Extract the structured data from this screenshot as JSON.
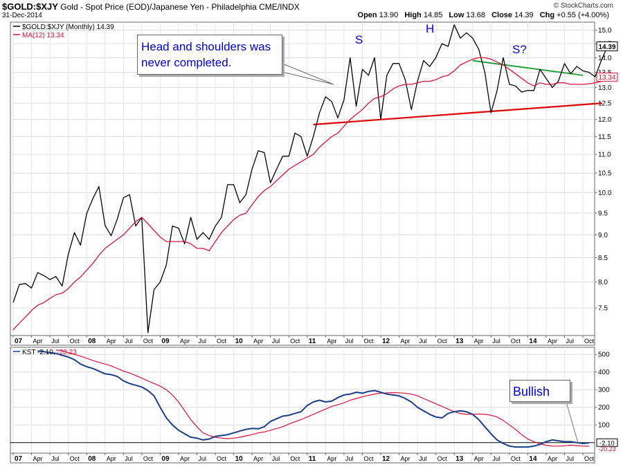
{
  "header": {
    "symbol": "$GOLD:$XJY",
    "description": "Gold - Spot Price (EOD)/Japanese Yen - Philadelphia  CME/INDX",
    "date": "31-Dec-2014",
    "credit": "© StockCharts.com",
    "open_label": "Open",
    "open": "13.90",
    "high_label": "High",
    "high": "14.85",
    "low_label": "Low",
    "low": "13.68",
    "close_label": "Close",
    "close": "14.39",
    "chg_label": "Chg",
    "chg": "+0.55 (+4.00%)"
  },
  "annotations": {
    "callout_line1": "Head and shoulders was",
    "callout_line2": "never completed.",
    "left_shoulder": "S",
    "head": "H",
    "right_shoulder": "S?",
    "bullish": "Bullish"
  },
  "colors": {
    "price": "#000000",
    "ma": "#e0103a",
    "kst": "#1a3e8c",
    "kst_signal": "#e0103a",
    "neckline": "#e00000",
    "trend": "#22a33a",
    "annotation_text": "#0000cc"
  },
  "chart_data": [
    {
      "type": "line",
      "title": "$GOLD:$XJY (Monthly) 14.39",
      "x_start": "2007-01",
      "x_labels": [
        "07",
        "Apr",
        "Jul",
        "Oct",
        "08",
        "Apr",
        "Jul",
        "Oct",
        "09",
        "Apr",
        "Jul",
        "Oct",
        "10",
        "Apr",
        "Jul",
        "Oct",
        "11",
        "Apr",
        "Jul",
        "Oct",
        "12",
        "Apr",
        "Jul",
        "Oct",
        "13",
        "Apr",
        "Jul",
        "Oct",
        "14",
        "Apr",
        "Jul",
        "Oct"
      ],
      "y_ticks": [
        7.5,
        8.0,
        8.5,
        9.0,
        9.5,
        10.0,
        10.5,
        11.0,
        11.5,
        12.0,
        12.5,
        13.0,
        13.5,
        14.0,
        14.5,
        15.0
      ],
      "ylim": [
        7.0,
        15.3
      ],
      "y_scale": "log",
      "last_value_label": "14.39",
      "ma_value_label": "13.34",
      "series": [
        {
          "name": "$GOLD:$XJY (Monthly) 14.39",
          "values": [
            7.6,
            7.95,
            7.97,
            7.88,
            8.19,
            8.13,
            8.05,
            8.11,
            7.92,
            8.57,
            9.05,
            8.77,
            9.49,
            9.85,
            10.15,
            9.21,
            8.98,
            9.36,
            9.87,
            9.95,
            9.2,
            9.4,
            7.05,
            7.85,
            8.0,
            8.35,
            9.2,
            9.15,
            8.8,
            9.4,
            8.9,
            9.05,
            8.9,
            9.2,
            9.4,
            10.2,
            10.2,
            9.75,
            9.95,
            10.6,
            11.1,
            11.05,
            10.25,
            10.6,
            10.95,
            10.95,
            11.6,
            11.5,
            10.95,
            11.5,
            12.2,
            12.7,
            12.55,
            12.05,
            12.6,
            14.0,
            12.4,
            13.6,
            13.4,
            14.0,
            12.0,
            13.4,
            13.8,
            13.8,
            13.25,
            12.3,
            13.2,
            13.9,
            13.7,
            14.0,
            14.5,
            14.4,
            15.2,
            14.7,
            14.9,
            14.7,
            14.3,
            13.5,
            12.2,
            12.9,
            14.0,
            13.1,
            13.05,
            12.85,
            12.9,
            12.9,
            13.6,
            13.3,
            13.0,
            13.2,
            13.8,
            13.45,
            13.7,
            13.55,
            13.5,
            13.35,
            13.9,
            14.39
          ]
        },
        {
          "name": "MA(12) 13.34",
          "values": [
            7.1,
            7.22,
            7.33,
            7.45,
            7.55,
            7.6,
            7.68,
            7.75,
            7.78,
            7.87,
            8.0,
            8.1,
            8.24,
            8.38,
            8.55,
            8.7,
            8.8,
            8.9,
            9.0,
            9.15,
            9.3,
            9.4,
            9.25,
            9.1,
            8.95,
            8.85,
            8.85,
            8.85,
            8.85,
            8.8,
            8.7,
            8.7,
            8.65,
            8.85,
            9.05,
            9.2,
            9.35,
            9.45,
            9.5,
            9.7,
            9.9,
            10.05,
            10.15,
            10.3,
            10.45,
            10.6,
            10.7,
            10.8,
            10.9,
            11.0,
            11.2,
            11.35,
            11.5,
            11.6,
            11.8,
            12.0,
            12.15,
            12.3,
            12.5,
            12.65,
            12.7,
            12.8,
            12.95,
            13.05,
            13.1,
            13.1,
            13.15,
            13.2,
            13.2,
            13.25,
            13.35,
            13.4,
            13.55,
            13.75,
            13.85,
            13.95,
            14.0,
            14.0,
            13.95,
            13.85,
            13.75,
            13.6,
            13.45,
            13.3,
            13.15,
            13.05,
            13.15,
            13.1,
            13.1,
            13.15,
            13.15,
            13.1,
            13.1,
            13.1,
            13.12,
            13.15,
            13.2,
            13.34
          ]
        }
      ]
    },
    {
      "type": "line",
      "title": "KST -2.10, -20.23",
      "x_start": "2007-01",
      "x_labels": [
        "07",
        "Apr",
        "Jul",
        "Oct",
        "08",
        "Apr",
        "Jul",
        "Oct",
        "09",
        "Apr",
        "Jul",
        "Oct",
        "10",
        "Apr",
        "Jul",
        "Oct",
        "11",
        "Apr",
        "Jul",
        "Oct",
        "12",
        "Apr",
        "Jul",
        "Oct",
        "13",
        "Apr",
        "Jul",
        "Oct",
        "14",
        "Apr",
        "Jul",
        "Oct"
      ],
      "y_ticks": [
        100,
        200,
        300,
        400,
        500
      ],
      "ylim": [
        -60,
        540
      ],
      "last_value_label": "-2.10",
      "signal_value_label": "-20.23",
      "series": [
        {
          "name": "KST -2.10",
          "values": [
            520,
            515,
            510,
            505,
            495,
            485,
            470,
            445,
            430,
            420,
            405,
            390,
            385,
            375,
            350,
            335,
            325,
            315,
            295,
            265,
            200,
            140,
            100,
            70,
            50,
            30,
            25,
            15,
            20,
            35,
            40,
            45,
            55,
            65,
            75,
            80,
            78,
            90,
            120,
            135,
            150,
            155,
            165,
            175,
            210,
            230,
            240,
            230,
            235,
            255,
            270,
            275,
            285,
            280,
            290,
            295,
            285,
            275,
            270,
            265,
            250,
            230,
            200,
            180,
            160,
            145,
            140,
            165,
            175,
            180,
            175,
            160,
            130,
            90,
            50,
            15,
            -5,
            -20,
            -25,
            -25,
            -25,
            -20,
            -10,
            5,
            15,
            10,
            5,
            5,
            0,
            -5,
            -2.1
          ]
        },
        {
          "name": "-20.23",
          "values": [
            525,
            520,
            510,
            500,
            490,
            478,
            465,
            455,
            445,
            435,
            420,
            405,
            395,
            380,
            365,
            350,
            335,
            320,
            300,
            270,
            230,
            180,
            130,
            90,
            55,
            40,
            30,
            25,
            22,
            25,
            30,
            38,
            45,
            55,
            60,
            70,
            80,
            90,
            105,
            118,
            130,
            145,
            160,
            175,
            190,
            205,
            215,
            225,
            240,
            250,
            260,
            268,
            275,
            280,
            282,
            283,
            282,
            280,
            275,
            265,
            250,
            235,
            220,
            205,
            190,
            175,
            165,
            160,
            160,
            162,
            160,
            155,
            145,
            125,
            100,
            75,
            45,
            20,
            5,
            -8,
            -15,
            -20,
            -20,
            -18,
            -15,
            -17,
            -20,
            -20.23
          ]
        }
      ]
    }
  ],
  "trendlines": {
    "neckline": {
      "x": [
        "2011-02",
        "2014-12"
      ],
      "y": [
        11.85,
        12.5
      ]
    },
    "right_shoulder_line": {
      "x": [
        "2013-04",
        "2014-10"
      ],
      "y": [
        13.9,
        13.4
      ]
    }
  }
}
